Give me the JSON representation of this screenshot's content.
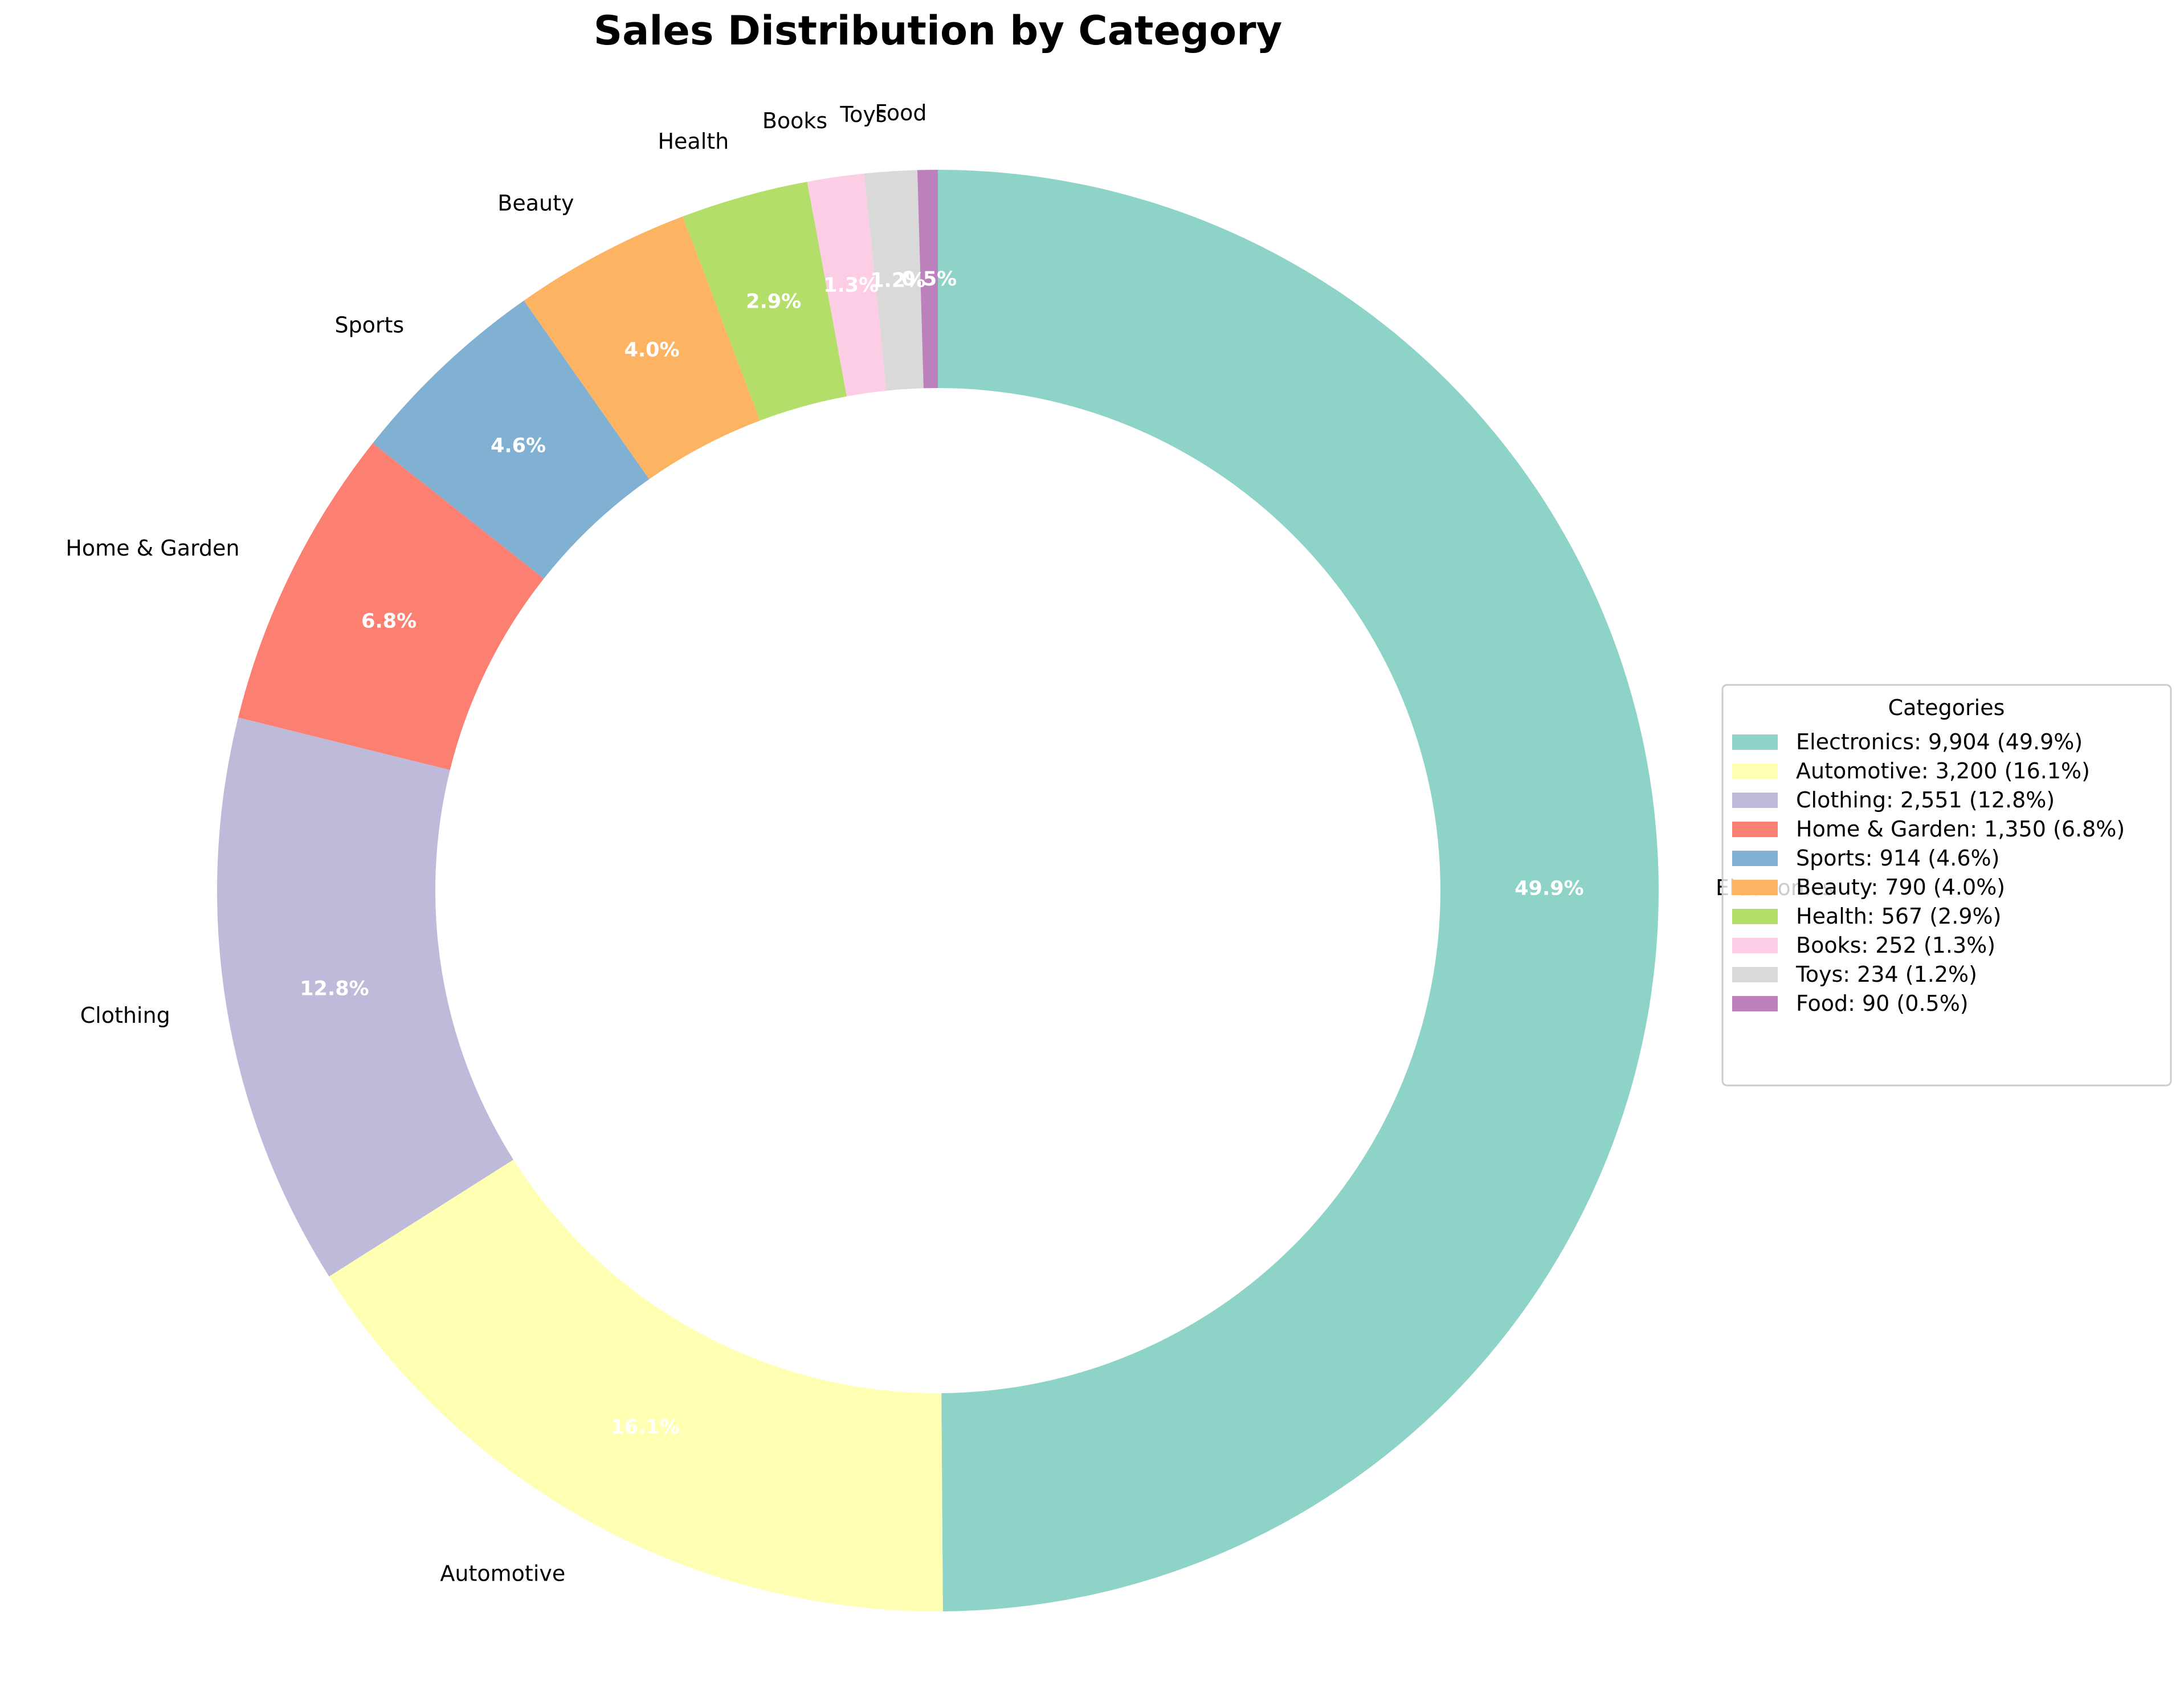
{
  "chart_data": {
    "type": "pie",
    "donut": true,
    "title": "Sales Distribution by Category",
    "start_angle_deg": 90,
    "direction": "clockwise",
    "categories": [
      "Electronics",
      "Automotive",
      "Clothing",
      "Home & Garden",
      "Sports",
      "Beauty",
      "Health",
      "Books",
      "Toys",
      "Food"
    ],
    "values": [
      9904,
      3200,
      2551,
      1350,
      914,
      790,
      567,
      252,
      234,
      90
    ],
    "percent_labels": [
      "49.9%",
      "16.1%",
      "12.8%",
      "6.8%",
      "4.6%",
      "4.0%",
      "2.9%",
      "1.3%",
      "1.2%",
      "0.5%"
    ],
    "colors": [
      "#8dd3c7",
      "#ffffb3",
      "#bebada",
      "#fb8072",
      "#80b1d3",
      "#fdb462",
      "#b3de69",
      "#fccde5",
      "#d9d9d9",
      "#bc80bd"
    ],
    "legend": {
      "title": "Categories",
      "placement": "center-right",
      "entries": [
        "Electronics: 9,904 (49.9%)",
        "Automotive: 3,200 (16.1%)",
        "Clothing: 2,551 (12.8%)",
        "Home & Garden: 1,350 (6.8%)",
        "Sports: 914 (4.6%)",
        "Beauty: 790 (4.0%)",
        "Health: 567 (2.9%)",
        "Books: 252 (1.3%)",
        "Toys: 234 (1.2%)",
        "Food: 90 (0.5%)"
      ]
    }
  }
}
